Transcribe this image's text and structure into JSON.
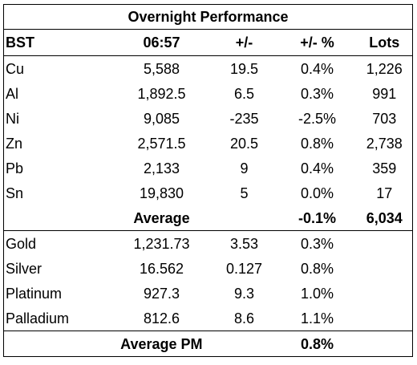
{
  "title": "Overnight Performance",
  "header": {
    "label": "BST",
    "time": "06:57",
    "change": "+/-",
    "change_pct": "+/- %",
    "lots": "Lots"
  },
  "base_metals": [
    {
      "name": "Cu",
      "price": "5,588",
      "change": "19.5",
      "pct": "0.4%",
      "lots": "1,226"
    },
    {
      "name": "Al",
      "price": "1,892.5",
      "change": "6.5",
      "pct": "0.3%",
      "lots": "991"
    },
    {
      "name": "Ni",
      "price": "9,085",
      "change": "-235",
      "pct": "-2.5%",
      "lots": "703"
    },
    {
      "name": "Zn",
      "price": "2,571.5",
      "change": "20.5",
      "pct": "0.8%",
      "lots": "2,738"
    },
    {
      "name": "Pb",
      "price": "2,133",
      "change": "9",
      "pct": "0.4%",
      "lots": "359"
    },
    {
      "name": "Sn",
      "price": "19,830",
      "change": "5",
      "pct": "0.0%",
      "lots": "17"
    }
  ],
  "average": {
    "label": "Average",
    "pct": "-0.1%",
    "lots": "6,034"
  },
  "precious_metals": [
    {
      "name": "Gold",
      "price": "1,231.73",
      "change": "3.53",
      "pct": "0.3%"
    },
    {
      "name": "Silver",
      "price": "16.562",
      "change": "0.127",
      "pct": "0.8%"
    },
    {
      "name": "Platinum",
      "price": "927.3",
      "change": "9.3",
      "pct": "1.0%"
    },
    {
      "name": "Palladium",
      "price": "812.6",
      "change": "8.6",
      "pct": "1.1%"
    }
  ],
  "average_pm": {
    "label": "Average PM",
    "pct": "0.8%"
  }
}
